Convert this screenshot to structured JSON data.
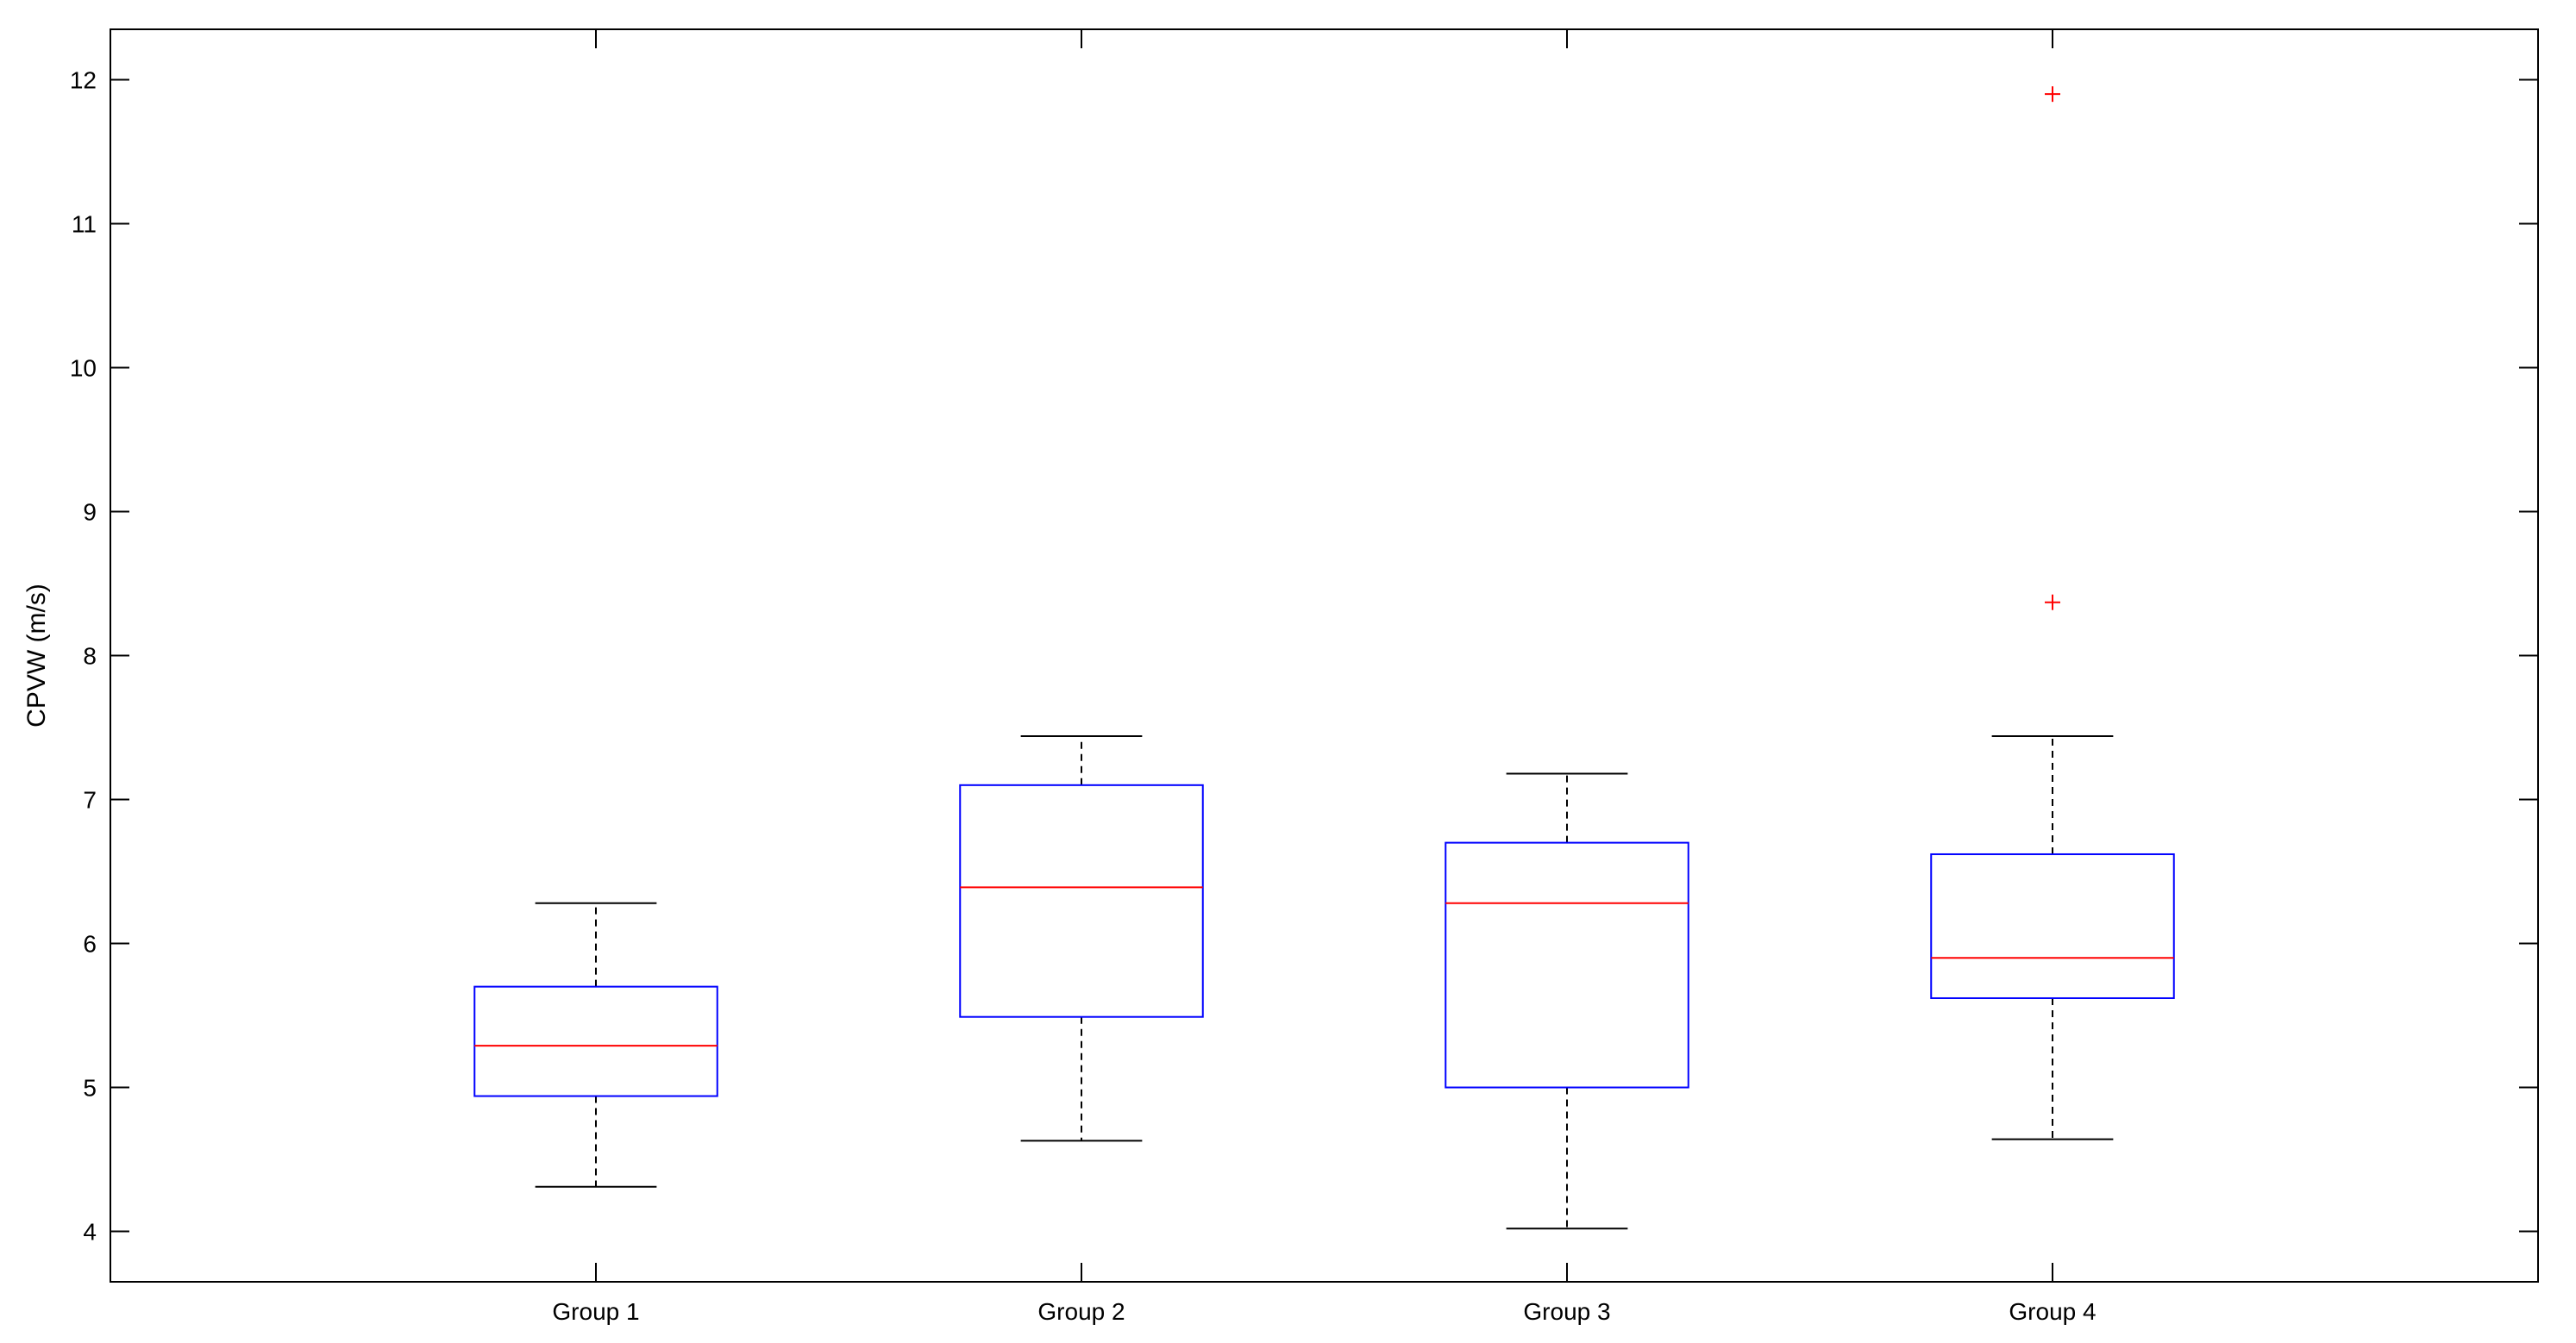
{
  "chart_data": {
    "type": "box",
    "title": "",
    "xlabel": "",
    "ylabel": "CPVW (m/s)",
    "ylim": [
      3.65,
      12.35
    ],
    "yticks": [
      4,
      5,
      6,
      7,
      8,
      9,
      10,
      11,
      12
    ],
    "grid": false,
    "categories": [
      "Group 1",
      "Group 2",
      "Group 3",
      "Group 4"
    ],
    "boxes": [
      {
        "whisker_low": 4.31,
        "q1": 4.94,
        "median": 5.29,
        "q3": 5.7,
        "whisker_high": 6.28,
        "outliers": []
      },
      {
        "whisker_low": 4.63,
        "q1": 5.49,
        "median": 6.39,
        "q3": 7.1,
        "whisker_high": 7.44,
        "outliers": []
      },
      {
        "whisker_low": 4.02,
        "q1": 5.0,
        "median": 6.28,
        "q3": 6.7,
        "whisker_high": 7.18,
        "outliers": []
      },
      {
        "whisker_low": 4.64,
        "q1": 5.62,
        "median": 5.9,
        "q3": 6.62,
        "whisker_high": 7.44,
        "outliers": [
          8.37,
          11.9
        ]
      }
    ],
    "colors": {
      "box": "#0000ff",
      "median": "#ff0000",
      "whisker": "#000000",
      "outlier": "#ff0000",
      "axes": "#000000"
    }
  }
}
